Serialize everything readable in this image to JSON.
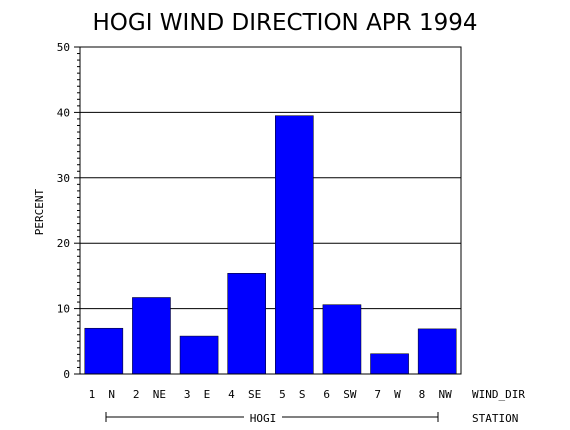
{
  "chart_data": {
    "type": "bar",
    "title": "HOGI WIND DIRECTION APR 1994",
    "ylabel": "PERCENT",
    "xlabel": "WIND_DIR",
    "group_axis_label": "STATION",
    "group_label": "HOGI",
    "categories": [
      "1 N",
      "2 NE",
      "3 E",
      "4 SE",
      "5 S",
      "6 SW",
      "7 W",
      "8 NW"
    ],
    "values": [
      7.0,
      11.7,
      5.8,
      15.4,
      39.5,
      10.6,
      3.1,
      6.9
    ],
    "ylim": [
      0,
      50
    ],
    "yticks": [
      "0",
      "10",
      "20",
      "30",
      "40",
      "50"
    ],
    "grid": true,
    "bar_color": "#0000FF"
  }
}
